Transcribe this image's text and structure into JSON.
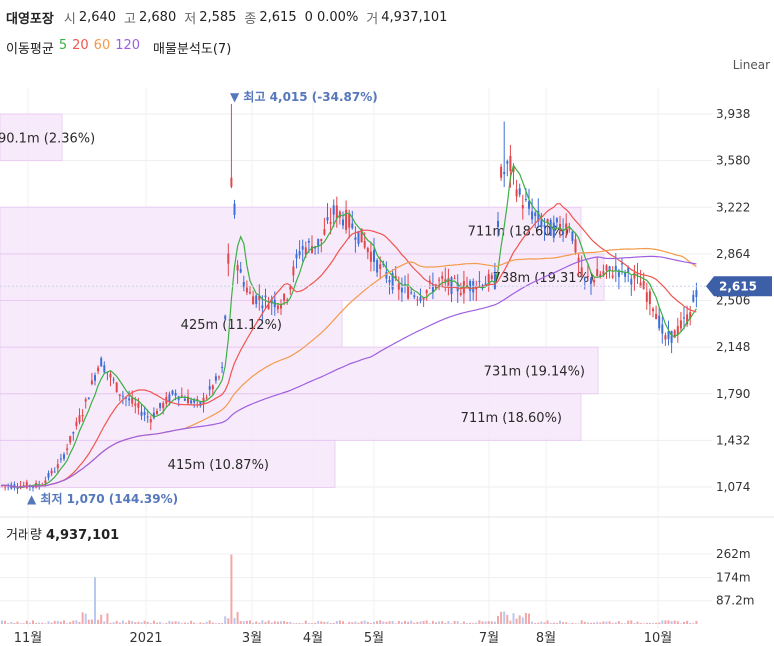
{
  "header": {
    "name": "대영포장",
    "open_label": "시",
    "open": "2,640",
    "high_label": "고",
    "high": "2,680",
    "low_label": "저",
    "low": "2,585",
    "close_label": "종",
    "close": "2,615",
    "change": "0 0.00%",
    "volume_label": "거",
    "volume": "4,937,101"
  },
  "ma_legend": {
    "label": "이동평균",
    "p5": "5",
    "p20": "20",
    "p60": "60",
    "p120": "120",
    "volume_profile": "매물분석도(7)"
  },
  "scale_mode": "Linear",
  "volume_label": {
    "label": "거래량",
    "value": "4,937,101"
  },
  "colors": {
    "up": "#e0464a",
    "down": "#3f6fd6",
    "ma5": "#3cb043",
    "ma20": "#f0554f",
    "ma60": "#f39a4b",
    "ma120": "#9f5fe0",
    "profile_fill": "#f6e8fb",
    "profile_stroke": "#e9c8f2",
    "current_bg": "#3c5fa8"
  },
  "chart_data": {
    "type": "candlestick",
    "price_axis": {
      "ticks": [
        "3,938",
        "3,580",
        "3,222",
        "2,864",
        "2,506",
        "2,148",
        "1,790",
        "1,432",
        "1,074"
      ]
    },
    "volume_axis": {
      "ticks": [
        "262m",
        "174m",
        "87.2m"
      ]
    },
    "x_ticks": [
      "11월",
      "2021",
      "3월",
      "4월",
      "5월",
      "7월",
      "8월",
      "10월"
    ],
    "current_price": "2,615",
    "annotations": {
      "high": "최고 4,015 (-34.87%)",
      "low": "최저 1,070 (144.39%)"
    },
    "volume_profile": [
      {
        "label": "415m (10.87%)",
        "low": 1070,
        "high": 1432
      },
      {
        "label": "711m (18.60%)",
        "low": 1432,
        "high": 1790
      },
      {
        "label": "731m (19.14%)",
        "low": 1790,
        "high": 2148
      },
      {
        "label": "425m (11.12%)",
        "low": 2148,
        "high": 2506
      },
      {
        "label": "738m (19.31%)",
        "low": 2506,
        "high": 2864
      },
      {
        "label": "711m (18.60%)",
        "low": 2864,
        "high": 3222
      },
      {
        "label": "90.1m (2.36%)",
        "low": 3580,
        "high": 3938
      }
    ]
  }
}
